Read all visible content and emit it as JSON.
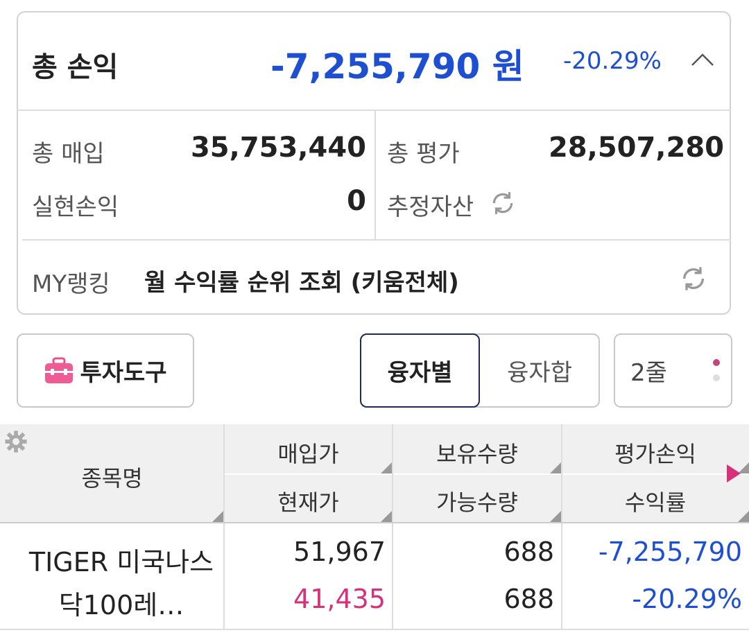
{
  "summary": {
    "label": "총 손익",
    "amount": "-7,255,790",
    "unit": "원",
    "rate": "-20.29%"
  },
  "details": {
    "total_purchase_label": "총 매입",
    "total_purchase": "35,753,440",
    "total_eval_label": "총 평가",
    "total_eval": "28,507,280",
    "realized_label": "실현손익",
    "realized": "0",
    "estimated_assets_label": "추정자산"
  },
  "ranking": {
    "label": "MY랭킹",
    "text": "월 수익률 순위 조회 (키움전체)"
  },
  "controls": {
    "tools": "투자도구",
    "tabs": [
      "융자별",
      "융자합"
    ],
    "rows": "2줄"
  },
  "table": {
    "name_header": "종목명",
    "headers": [
      [
        "매입가",
        "현재가"
      ],
      [
        "보유수량",
        "가능수량"
      ],
      [
        "평가손익",
        "수익률"
      ]
    ],
    "rows": [
      {
        "name": "TIGER 미국나스닥100레…",
        "purchase_price": "51,967",
        "current_price": "41,435",
        "holding_qty": "688",
        "available_qty": "688",
        "profit": "-7,255,790",
        "rate": "-20.29%"
      }
    ]
  }
}
